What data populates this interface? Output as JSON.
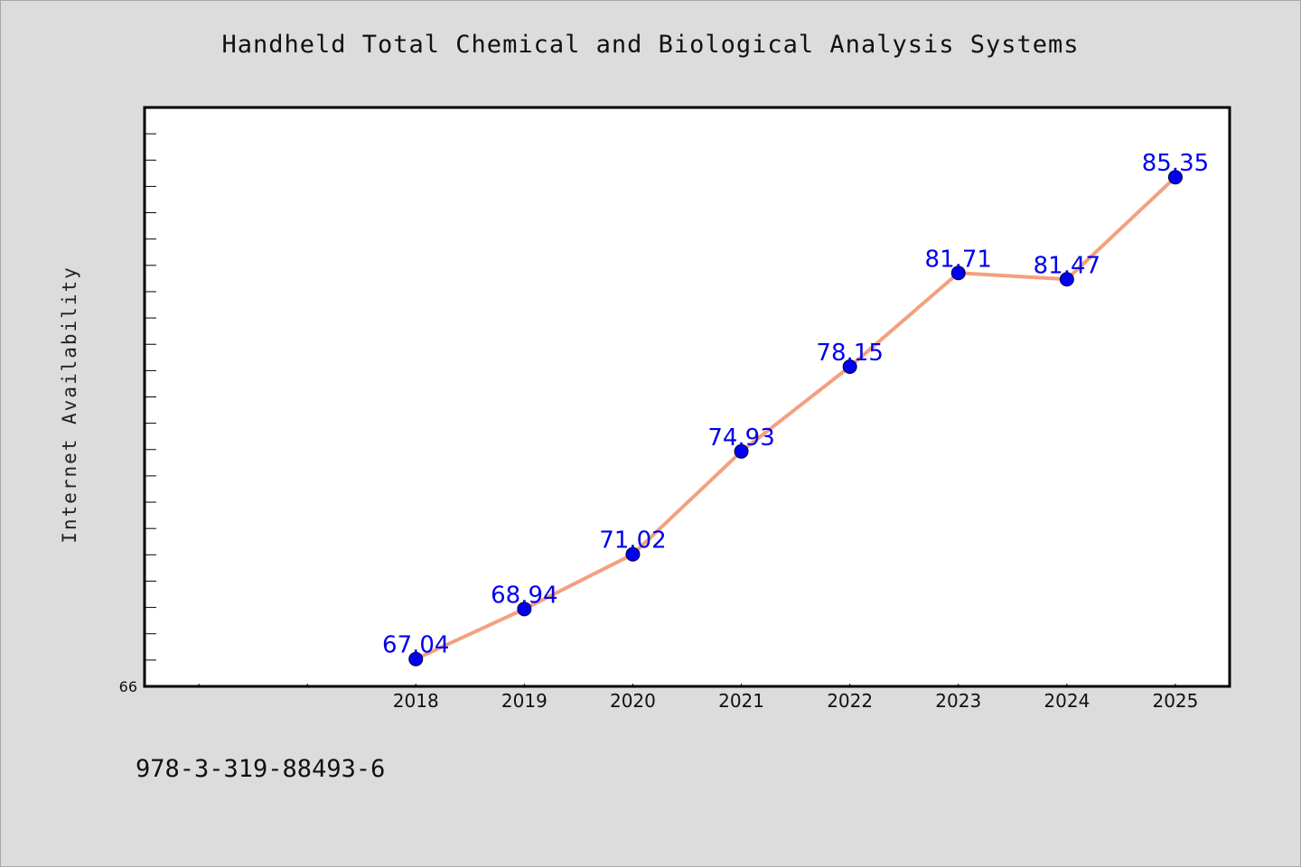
{
  "chart_data": {
    "type": "line",
    "title": "Handheld Total Chemical and Biological Analysis Systems",
    "ylabel": "Internet Availability",
    "xlabel": "",
    "categories": [
      "2018",
      "2019",
      "2020",
      "2021",
      "2022",
      "2023",
      "2024",
      "2025"
    ],
    "x_range": [
      2015.5,
      2025.5
    ],
    "values": [
      67.04,
      68.94,
      71.02,
      74.93,
      78.15,
      81.71,
      81.47,
      85.35
    ],
    "value_labels": [
      "67.04",
      "68.94",
      "71.02",
      "74.93",
      "78.15",
      "81.71",
      "81.47",
      "85.35"
    ],
    "ylim": [
      66,
      88
    ],
    "y_tick_labels": [
      "66"
    ],
    "grid": false,
    "line_color": "#f4a07e",
    "marker_color": "#0000ee",
    "label_color": "#0000ee"
  },
  "footer": {
    "isbn": "978-3-319-88493-6"
  }
}
